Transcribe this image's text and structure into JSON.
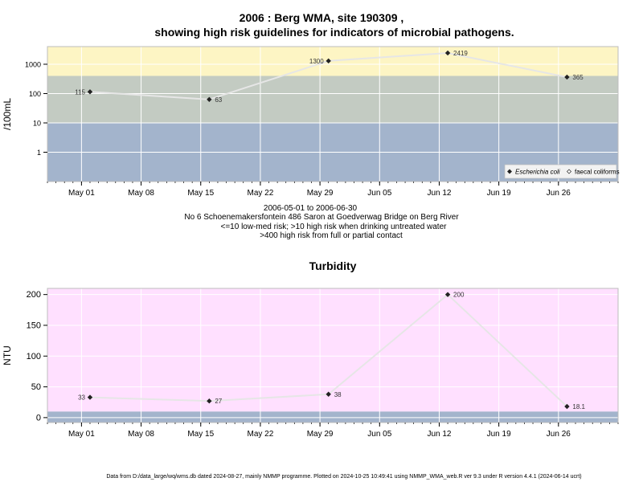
{
  "header": {
    "title_line1": "2006 : Berg WMA, site 190309 ,",
    "title_line2": "showing high risk guidelines for indicators of microbial pathogens."
  },
  "subtitle": {
    "line1": "2006-05-01 to 2006-06-30",
    "line2": "No 6 Schoenemakersfontein 486 Saron at Goedverwag Bridge on Berg River",
    "line3": "<=10 low-med risk; >10 high risk when drinking untreated water",
    "line4": ">400 high risk from full or partial contact"
  },
  "footer": {
    "note": "Data from D:/data_large/wq/wms.db dated 2024-08-27, mainly NMMP programme. Plotted on 2024-10-25 10:49:41 using NMMP_WMA_web.R ver 9.3 under R version 4.4.1 (2024-06-14 ucrt)"
  },
  "colors": {
    "band_low": "#a3b4cc",
    "band_mid": "#c3cbc2",
    "band_high": "#fdf5c4",
    "turbidity_bg": "#ffe0ff",
    "turbidity_low_band": "#a3b4cc",
    "line": "#e6e6e6",
    "grid": "#ffffff",
    "marker": "#222222"
  },
  "chart_data": [
    {
      "type": "line",
      "title": "",
      "ylabel": "/100mL",
      "yscale": "log",
      "ylim": [
        0.1,
        4000
      ],
      "yticks": [
        1,
        10,
        100,
        1000
      ],
      "ytick_labels": [
        "1",
        "10",
        "100",
        "1000"
      ],
      "xlim": [
        "2006-04-27",
        "2006-07-03"
      ],
      "xticks": [
        "2006-05-01",
        "2006-05-08",
        "2006-05-15",
        "2006-05-22",
        "2006-05-29",
        "2006-06-05",
        "2006-06-12",
        "2006-06-19",
        "2006-06-26"
      ],
      "xtick_labels": [
        "May 01",
        "May 08",
        "May 15",
        "May 22",
        "May 29",
        "Jun 05",
        "Jun 12",
        "Jun 19",
        "Jun 26"
      ],
      "risk_bands": [
        {
          "from": 0.1,
          "to": 10,
          "color": "#a3b4cc"
        },
        {
          "from": 10,
          "to": 400,
          "color": "#c3cbc2"
        },
        {
          "from": 400,
          "to": 4000,
          "color": "#fdf5c4"
        }
      ],
      "series": [
        {
          "name": "Escherichia coli",
          "x": [
            "2006-05-02",
            "2006-05-16",
            "2006-05-30",
            "2006-06-13",
            "2006-06-27"
          ],
          "y": [
            115,
            63,
            1300,
            2419,
            365
          ],
          "labels": [
            "115",
            "63",
            "1300",
            "2419",
            "365"
          ],
          "label_side": [
            "left",
            "right",
            "left",
            "right",
            "right"
          ]
        }
      ],
      "legend": {
        "position": "bottom-right",
        "items": [
          {
            "label": "Escherichia coli",
            "marker": "filled-diamond",
            "italic": true
          },
          {
            "label": "faecal coliforms",
            "marker": "open-diamond",
            "italic": false
          }
        ]
      },
      "grid": true
    },
    {
      "type": "line",
      "title": "Turbidity",
      "ylabel": "NTU",
      "yscale": "linear",
      "ylim": [
        -8,
        210
      ],
      "yticks": [
        0,
        50,
        100,
        150,
        200
      ],
      "ytick_labels": [
        "0",
        "50",
        "100",
        "150",
        "200"
      ],
      "xlim": [
        "2006-04-27",
        "2006-07-03"
      ],
      "xticks": [
        "2006-05-01",
        "2006-05-08",
        "2006-05-15",
        "2006-05-22",
        "2006-05-29",
        "2006-06-05",
        "2006-06-12",
        "2006-06-19",
        "2006-06-26"
      ],
      "xtick_labels": [
        "May 01",
        "May 08",
        "May 15",
        "May 22",
        "May 29",
        "Jun 05",
        "Jun 12",
        "Jun 19",
        "Jun 26"
      ],
      "risk_bands": [
        {
          "from": -8,
          "to": 10,
          "color": "#a3b4cc"
        },
        {
          "from": 10,
          "to": 210,
          "color": "#ffe0ff"
        }
      ],
      "series": [
        {
          "x": [
            "2006-05-02",
            "2006-05-16",
            "2006-05-30",
            "2006-06-13",
            "2006-06-27"
          ],
          "y": [
            33,
            27,
            38,
            200,
            18.1
          ],
          "labels": [
            "33",
            "27",
            "38",
            "200",
            "18.1"
          ],
          "label_side": [
            "left",
            "right",
            "right",
            "right",
            "right"
          ]
        }
      ],
      "grid": true
    }
  ]
}
